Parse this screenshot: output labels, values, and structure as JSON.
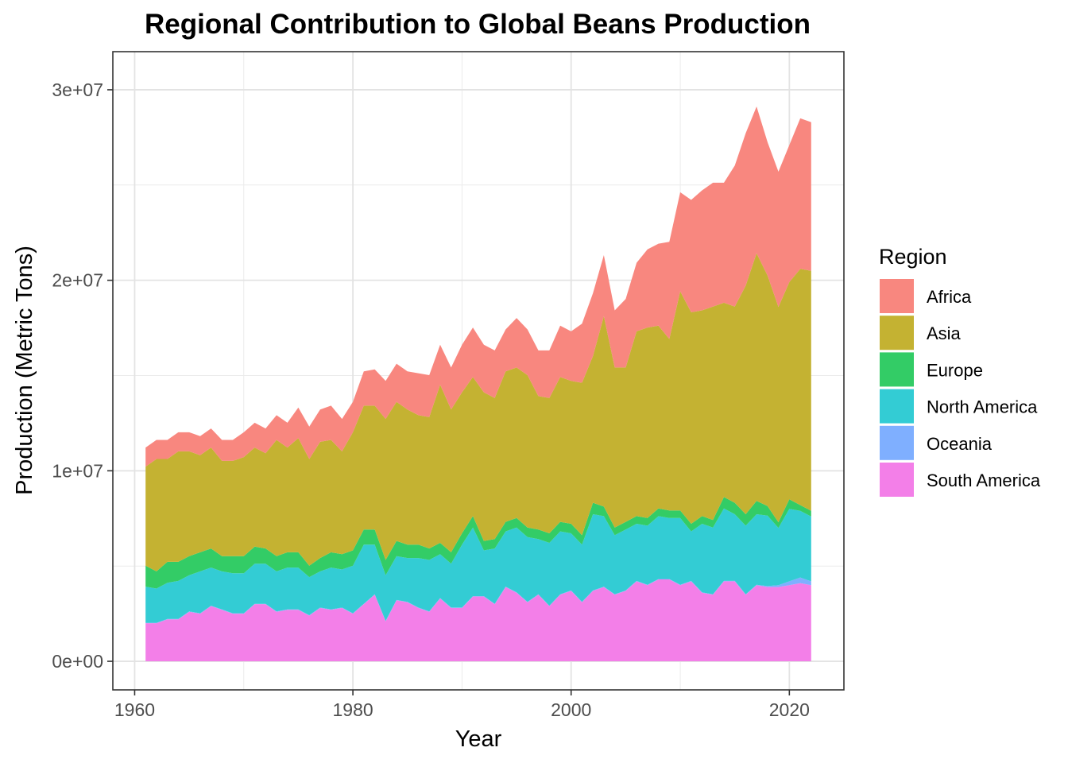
{
  "chart_data": {
    "type": "area",
    "stacked": true,
    "title": "Regional Contribution to Global Beans Production",
    "xlabel": "Year",
    "ylabel": "Production (Metric Tons)",
    "xlim": [
      1958,
      2025
    ],
    "ylim": [
      -1500000,
      32000000
    ],
    "x_ticks": [
      1960,
      1980,
      2000,
      2020
    ],
    "x_tick_labels": [
      "1960",
      "1980",
      "2000",
      "2020"
    ],
    "y_ticks": [
      0,
      10000000,
      20000000,
      30000000
    ],
    "y_tick_labels": [
      "0e+00",
      "1e+07",
      "2e+07",
      "3e+07"
    ],
    "grid": true,
    "legend": {
      "title": "Region",
      "position": "right"
    },
    "x": [
      1961,
      1962,
      1963,
      1964,
      1965,
      1966,
      1967,
      1968,
      1969,
      1970,
      1971,
      1972,
      1973,
      1974,
      1975,
      1976,
      1977,
      1978,
      1979,
      1980,
      1981,
      1982,
      1983,
      1984,
      1985,
      1986,
      1987,
      1988,
      1989,
      1990,
      1991,
      1992,
      1993,
      1994,
      1995,
      1996,
      1997,
      1998,
      1999,
      2000,
      2001,
      2002,
      2003,
      2004,
      2005,
      2006,
      2007,
      2008,
      2009,
      2010,
      2011,
      2012,
      2013,
      2014,
      2015,
      2016,
      2017,
      2018,
      2019,
      2020,
      2021,
      2022
    ],
    "series": [
      {
        "name": "South America",
        "color": "#F37FE8",
        "values": [
          2000000,
          2000000,
          2200000,
          2200000,
          2600000,
          2500000,
          2900000,
          2700000,
          2500000,
          2500000,
          3000000,
          3000000,
          2600000,
          2700000,
          2700000,
          2400000,
          2800000,
          2700000,
          2800000,
          2500000,
          3000000,
          3500000,
          2100000,
          3200000,
          3100000,
          2800000,
          2600000,
          3300000,
          2800000,
          2800000,
          3400000,
          3400000,
          3000000,
          3900000,
          3600000,
          3100000,
          3500000,
          2900000,
          3500000,
          3700000,
          3100000,
          3700000,
          3900000,
          3500000,
          3700000,
          4200000,
          4000000,
          4300000,
          4300000,
          4000000,
          4200000,
          3600000,
          3500000,
          4200000,
          4200000,
          3500000,
          4000000,
          3900000,
          3900000,
          4000000,
          4100000,
          4000000
        ]
      },
      {
        "name": "Oceania",
        "color": "#7FAFFF",
        "values": [
          20000,
          20000,
          20000,
          20000,
          20000,
          20000,
          20000,
          20000,
          20000,
          20000,
          20000,
          20000,
          20000,
          20000,
          20000,
          20000,
          20000,
          20000,
          20000,
          20000,
          20000,
          20000,
          20000,
          20000,
          20000,
          20000,
          20000,
          20000,
          20000,
          20000,
          20000,
          20000,
          20000,
          20000,
          20000,
          20000,
          20000,
          20000,
          20000,
          20000,
          20000,
          20000,
          20000,
          20000,
          20000,
          20000,
          20000,
          20000,
          20000,
          20000,
          20000,
          20000,
          20000,
          20000,
          20000,
          20000,
          20000,
          50000,
          100000,
          200000,
          300000,
          200000
        ]
      },
      {
        "name": "North America",
        "color": "#33CCD4",
        "values": [
          1900000,
          1800000,
          1900000,
          2000000,
          1900000,
          2200000,
          2000000,
          2000000,
          2100000,
          2100000,
          2100000,
          2100000,
          2100000,
          2200000,
          2200000,
          2000000,
          1900000,
          2200000,
          2000000,
          2500000,
          3100000,
          2600000,
          2400000,
          2300000,
          2300000,
          2600000,
          2700000,
          2300000,
          2300000,
          3300000,
          3600000,
          2400000,
          2900000,
          2900000,
          3400000,
          3400000,
          2900000,
          3300000,
          3300000,
          3000000,
          3000000,
          4000000,
          3700000,
          3100000,
          3200000,
          3000000,
          3100000,
          3300000,
          3200000,
          3500000,
          2600000,
          3600000,
          3500000,
          3800000,
          3500000,
          3600000,
          3700000,
          3700000,
          3000000,
          3800000,
          3500000,
          3400000
        ]
      },
      {
        "name": "Europe",
        "color": "#33CC66",
        "values": [
          1100000,
          900000,
          1100000,
          1000000,
          1000000,
          1000000,
          1000000,
          800000,
          900000,
          900000,
          900000,
          800000,
          800000,
          800000,
          800000,
          600000,
          700000,
          800000,
          800000,
          800000,
          800000,
          800000,
          800000,
          800000,
          700000,
          700000,
          600000,
          600000,
          600000,
          600000,
          600000,
          500000,
          500000,
          500000,
          500000,
          500000,
          500000,
          500000,
          500000,
          500000,
          500000,
          600000,
          500000,
          400000,
          400000,
          400000,
          400000,
          400000,
          400000,
          400000,
          400000,
          400000,
          400000,
          600000,
          600000,
          600000,
          700000,
          500000,
          300000,
          500000,
          300000,
          300000
        ]
      },
      {
        "name": "Asia",
        "color": "#C4B232",
        "values": [
          5200000,
          5900000,
          5400000,
          5800000,
          5500000,
          5100000,
          5300000,
          5000000,
          5000000,
          5200000,
          5200000,
          5000000,
          6100000,
          5500000,
          6000000,
          5600000,
          6100000,
          5900000,
          5400000,
          6200000,
          6500000,
          6500000,
          7400000,
          7300000,
          7100000,
          6800000,
          6900000,
          8300000,
          7500000,
          7400000,
          7300000,
          7800000,
          7400000,
          7900000,
          7900000,
          8000000,
          7000000,
          7100000,
          7600000,
          7500000,
          8000000,
          7700000,
          10000000,
          8400000,
          8100000,
          9700000,
          10000000,
          9600000,
          9000000,
          11500000,
          11100000,
          10800000,
          11200000,
          10200000,
          10300000,
          12000000,
          13000000,
          12100000,
          11300000,
          11400000,
          12400000,
          12600000
        ]
      },
      {
        "name": "Africa",
        "color": "#F8877F",
        "values": [
          1000000,
          1000000,
          1000000,
          1000000,
          1000000,
          1000000,
          1000000,
          1100000,
          1100000,
          1300000,
          1300000,
          1300000,
          1300000,
          1300000,
          1600000,
          1700000,
          1700000,
          1800000,
          1700000,
          1600000,
          1800000,
          1900000,
          2000000,
          2000000,
          2000000,
          2200000,
          2200000,
          2100000,
          2200000,
          2500000,
          2600000,
          2500000,
          2500000,
          2200000,
          2600000,
          2400000,
          2400000,
          2500000,
          2700000,
          2600000,
          3100000,
          3300000,
          3200000,
          3000000,
          3600000,
          3600000,
          4100000,
          4300000,
          5100000,
          5200000,
          5900000,
          6300000,
          6500000,
          6300000,
          7400000,
          8000000,
          7700000,
          7000000,
          7100000,
          7200000,
          7900000,
          7800000
        ]
      }
    ]
  }
}
